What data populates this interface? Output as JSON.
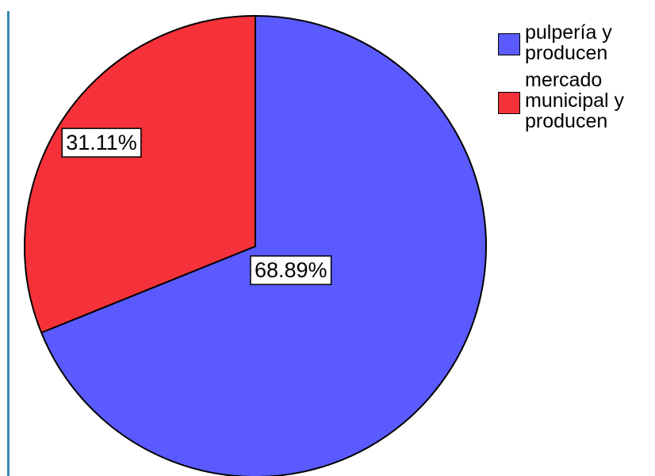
{
  "chart_data": {
    "type": "pie",
    "slices": [
      {
        "label": "pulpería y producen",
        "value": 68.89,
        "display": "68.89%",
        "color": "#5a5aff"
      },
      {
        "label": "mercado municipal y producen",
        "value": 31.11,
        "display": "31.11%",
        "color": "#f5323a"
      }
    ],
    "legend_position": "top-right",
    "start_angle": "12 o'clock",
    "direction": "clockwise"
  }
}
